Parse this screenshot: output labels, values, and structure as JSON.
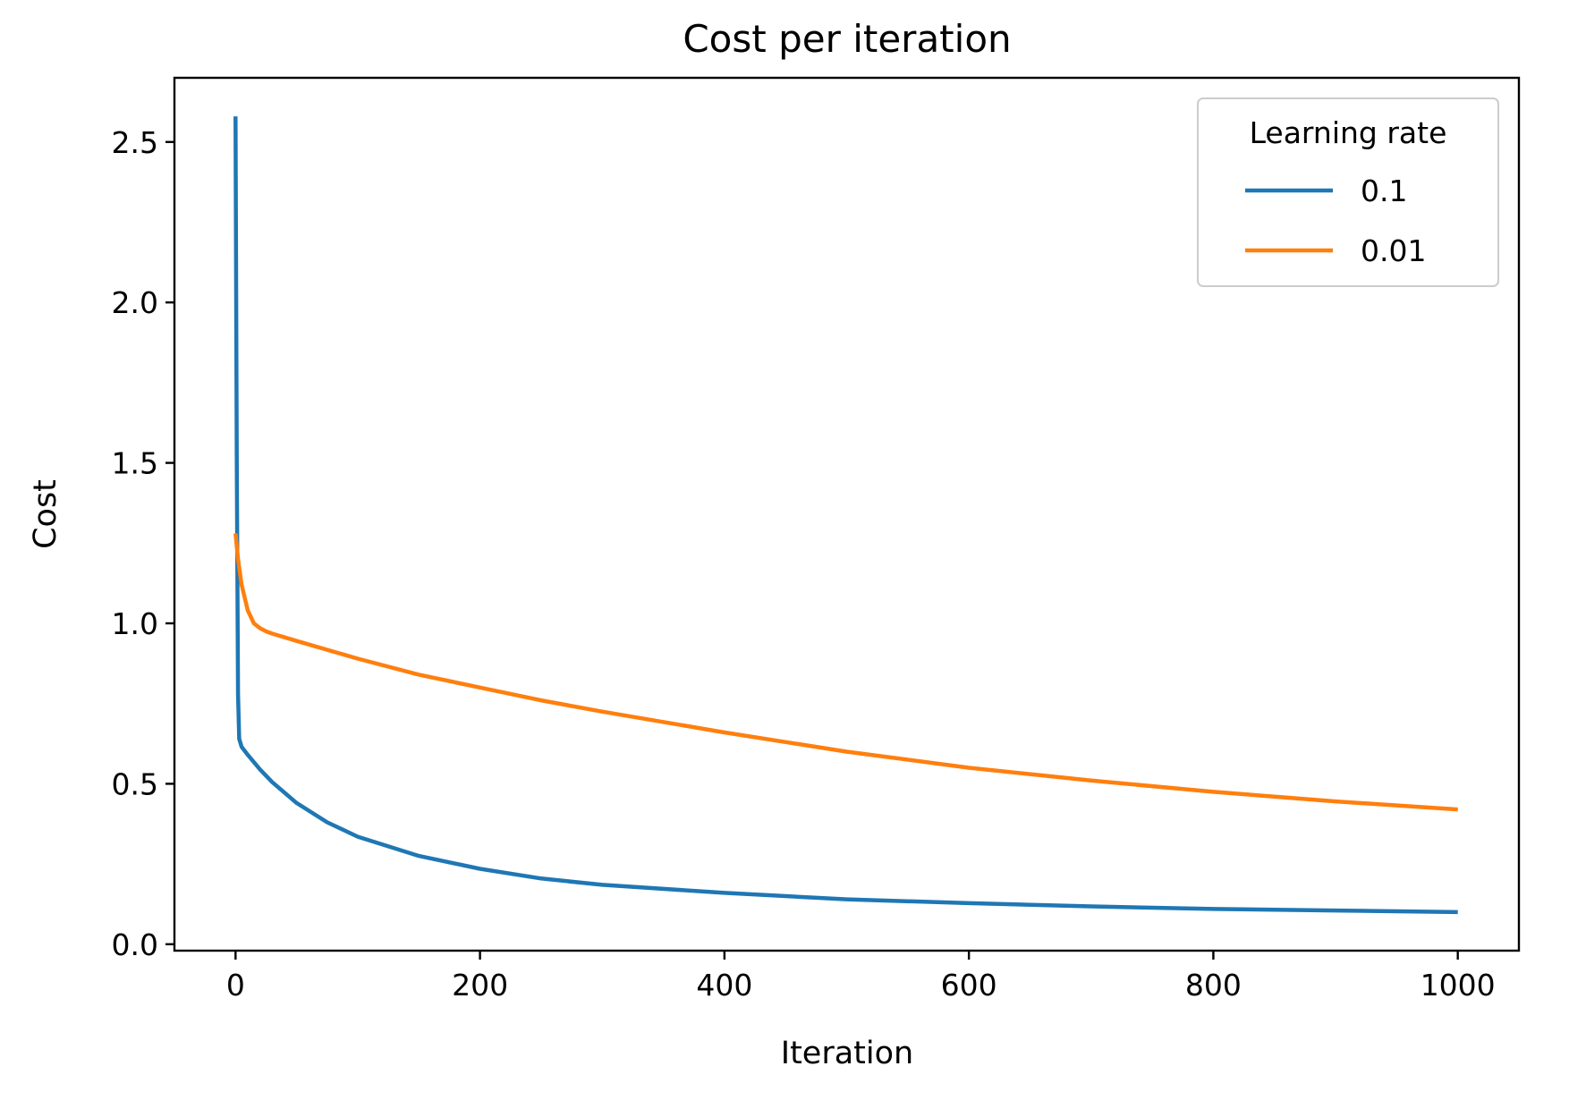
{
  "chart_data": {
    "type": "line",
    "title": "Cost per iteration",
    "xlabel": "Iteration",
    "ylabel": "Cost",
    "xlim": [
      -50,
      1050
    ],
    "ylim": [
      -0.02,
      2.7
    ],
    "xticks": [
      0,
      200,
      400,
      600,
      800,
      1000
    ],
    "xtick_labels": [
      "0",
      "200",
      "400",
      "600",
      "800",
      "1000"
    ],
    "yticks": [
      0.0,
      0.5,
      1.0,
      1.5,
      2.0,
      2.5
    ],
    "ytick_labels": [
      "0.0",
      "0.5",
      "1.0",
      "1.5",
      "2.0",
      "2.5"
    ],
    "grid": false,
    "legend": {
      "title": "Learning rate",
      "placement": "top-right"
    },
    "series": [
      {
        "name": "0.1",
        "color": "#1f77b4",
        "x": [
          0,
          1,
          2,
          3,
          5,
          10,
          20,
          30,
          50,
          75,
          100,
          150,
          200,
          250,
          300,
          400,
          500,
          600,
          700,
          800,
          900,
          1000
        ],
        "y": [
          2.58,
          1.5,
          0.78,
          0.64,
          0.615,
          0.59,
          0.545,
          0.505,
          0.44,
          0.38,
          0.335,
          0.275,
          0.235,
          0.205,
          0.185,
          0.16,
          0.14,
          0.128,
          0.118,
          0.11,
          0.105,
          0.1
        ]
      },
      {
        "name": "0.01",
        "color": "#ff7f0e",
        "x": [
          0,
          2,
          5,
          10,
          15,
          20,
          25,
          30,
          50,
          100,
          150,
          200,
          250,
          300,
          400,
          500,
          600,
          700,
          800,
          900,
          1000
        ],
        "y": [
          1.28,
          1.2,
          1.12,
          1.04,
          1.0,
          0.985,
          0.975,
          0.968,
          0.945,
          0.89,
          0.84,
          0.8,
          0.76,
          0.725,
          0.66,
          0.6,
          0.55,
          0.51,
          0.475,
          0.445,
          0.42
        ]
      }
    ]
  }
}
